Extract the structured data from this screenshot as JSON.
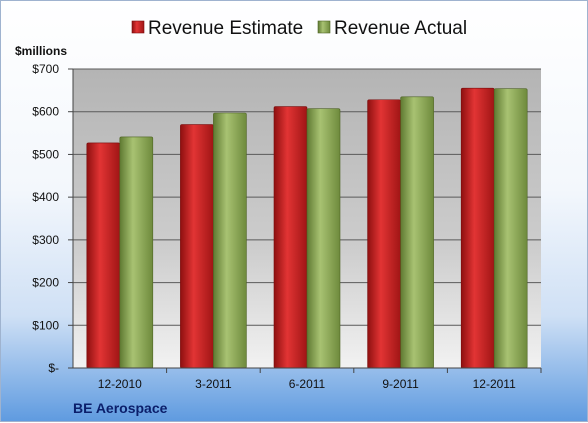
{
  "chart_data": {
    "type": "bar",
    "categories": [
      "12-2010",
      "3-2011",
      "6-2011",
      "9-2011",
      "12-2011"
    ],
    "series": [
      {
        "name": "Revenue Estimate",
        "values": [
          527,
          570,
          612,
          628,
          655
        ],
        "color": "#c81e1e"
      },
      {
        "name": "Revenue Actual",
        "values": [
          541,
          597,
          607,
          635,
          654
        ],
        "color": "#8aa65a"
      }
    ],
    "ylim": [
      0,
      700
    ],
    "yticks": [
      0,
      100,
      200,
      300,
      400,
      500,
      600,
      700
    ],
    "ytick_labels": [
      "$-",
      "$100",
      "$200",
      "$300",
      "$400",
      "$500",
      "$600",
      "$700"
    ],
    "ylabel": "$millions",
    "title": "",
    "xlabel": "",
    "grid": true,
    "legend": "top"
  },
  "company": "BE Aerospace"
}
